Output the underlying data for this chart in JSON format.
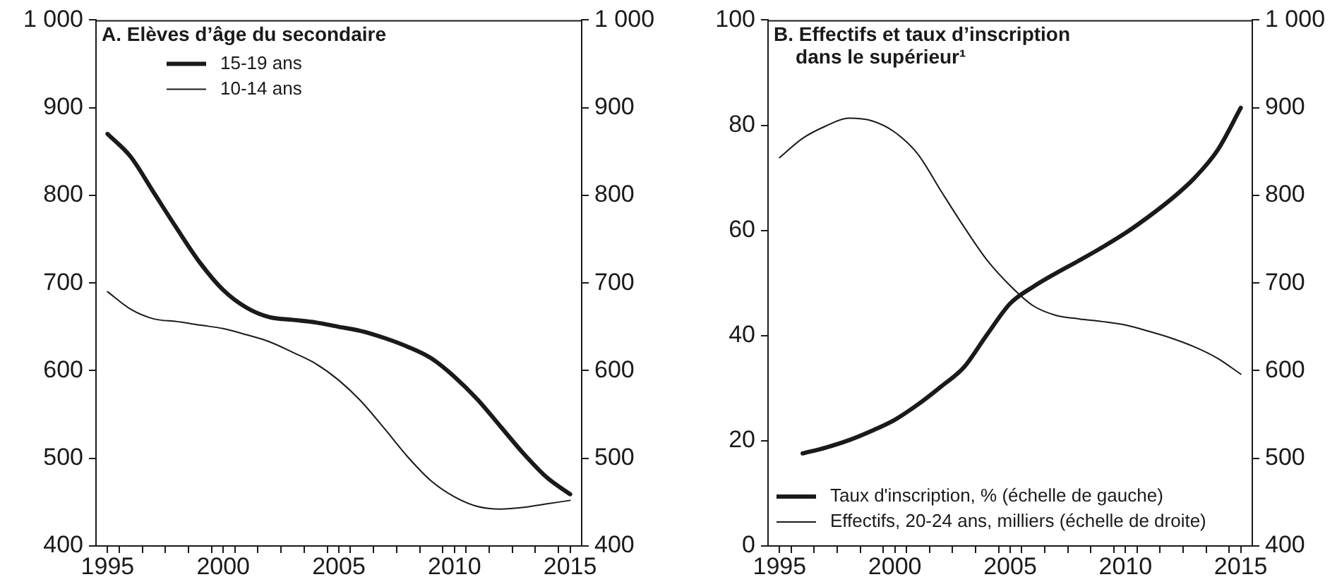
{
  "chart_data": [
    {
      "type": "line",
      "title": "A. Elèves d’âge du secondaire",
      "legend": "top",
      "grid": false,
      "marker": "none",
      "line_style": "solid",
      "x": [
        1995,
        1996,
        1997,
        1998,
        1999,
        2000,
        2001,
        2002,
        2003,
        2004,
        2005,
        2006,
        2007,
        2008,
        2009,
        2010,
        2011,
        2012,
        2013,
        2014,
        2015
      ],
      "xlim": [
        1994.5,
        2015.5
      ],
      "xticks": [
        1995,
        {
          "value": 1995.5,
          "label": null
        },
        {
          "value": 1996.5,
          "label": null
        },
        {
          "value": 1997.5,
          "label": null
        },
        {
          "value": 1998.5,
          "label": null
        },
        {
          "value": 1999.5,
          "label": null
        },
        2000,
        {
          "value": 2000.5,
          "label": null
        },
        {
          "value": 2001.5,
          "label": null
        },
        {
          "value": 2002.5,
          "label": null
        },
        {
          "value": 2003.5,
          "label": null
        },
        {
          "value": 2004.5,
          "label": null
        },
        2005,
        {
          "value": 2005.5,
          "label": null
        },
        {
          "value": 2006.5,
          "label": null
        },
        {
          "value": 2007.5,
          "label": null
        },
        {
          "value": 2008.5,
          "label": null
        },
        {
          "value": 2009.5,
          "label": null
        },
        2010,
        {
          "value": 2010.5,
          "label": null
        },
        {
          "value": 2011.5,
          "label": null
        },
        {
          "value": 2012.5,
          "label": null
        },
        {
          "value": 2013.5,
          "label": null
        },
        {
          "value": 2014.5,
          "label": null
        },
        2015
      ],
      "ylim": [
        400,
        1000
      ],
      "yticks": [
        400,
        500,
        600,
        700,
        800,
        900,
        {
          "value": 1000,
          "label": "1 000"
        }
      ],
      "y2lim": [
        400,
        1000
      ],
      "y2ticks": [
        400,
        500,
        600,
        700,
        800,
        900,
        {
          "value": 1000,
          "label": "1 000"
        }
      ],
      "series": [
        {
          "name": "15-19 ans",
          "color": "#1a1a1a",
          "values": [
            870,
            844,
            803,
            762,
            723,
            692,
            672,
            661,
            658,
            655,
            650,
            645,
            637,
            627,
            614,
            593,
            567,
            536,
            505,
            478,
            459
          ]
        },
        {
          "name": "10-14 ans",
          "color": "#1a1a1a",
          "values": [
            690,
            670,
            659,
            656,
            652,
            648,
            641,
            633,
            621,
            608,
            589,
            564,
            533,
            501,
            474,
            456,
            445,
            442,
            444,
            448,
            452
          ]
        }
      ]
    },
    {
      "type": "line",
      "title": "B. Effectifs et taux d’inscription\n    dans le supérieur¹",
      "legend": "bottom left",
      "grid": false,
      "marker": "none",
      "line_style": "solid",
      "x": [
        1995,
        1996,
        1997,
        1998,
        1999,
        2000,
        2001,
        2002,
        2003,
        2004,
        2005,
        2006,
        2007,
        2008,
        2009,
        2010,
        2011,
        2012,
        2013,
        2014,
        2015
      ],
      "xlim": [
        1994.5,
        2015.5
      ],
      "xticks": [
        1995,
        {
          "value": 1995.5,
          "label": null
        },
        {
          "value": 1996.5,
          "label": null
        },
        {
          "value": 1997.5,
          "label": null
        },
        {
          "value": 1998.5,
          "label": null
        },
        {
          "value": 1999.5,
          "label": null
        },
        2000,
        {
          "value": 2000.5,
          "label": null
        },
        {
          "value": 2001.5,
          "label": null
        },
        {
          "value": 2002.5,
          "label": null
        },
        {
          "value": 2003.5,
          "label": null
        },
        {
          "value": 2004.5,
          "label": null
        },
        2005,
        {
          "value": 2005.5,
          "label": null
        },
        {
          "value": 2006.5,
          "label": null
        },
        {
          "value": 2007.5,
          "label": null
        },
        {
          "value": 2008.5,
          "label": null
        },
        {
          "value": 2009.5,
          "label": null
        },
        2010,
        {
          "value": 2010.5,
          "label": null
        },
        {
          "value": 2011.5,
          "label": null
        },
        {
          "value": 2012.5,
          "label": null
        },
        {
          "value": 2013.5,
          "label": null
        },
        {
          "value": 2014.5,
          "label": null
        },
        2015
      ],
      "ylim": [
        0,
        100
      ],
      "yticks": [
        0,
        20,
        40,
        60,
        80,
        100
      ],
      "y2lim": [
        400,
        1000
      ],
      "y2ticks": [
        400,
        500,
        600,
        700,
        800,
        900,
        {
          "value": 1000,
          "label": "1 000"
        }
      ],
      "series": [
        {
          "name": "Taux d'inscription, % (échelle de gauche)",
          "color": "#1a1a1a",
          "values": [
            null,
            17.6,
            18.7,
            20.1,
            21.9,
            24.0,
            26.9,
            30.3,
            34.0,
            40.2,
            46.1,
            49.3,
            51.9,
            54.3,
            56.8,
            59.5,
            62.6,
            66.0,
            70.0,
            75.3,
            83.3
          ]
        },
        {
          "name": "Effectifs, 20-24 ans, milliers (échelle de droite)",
          "color": "#1a1a1a",
          "axis": "y2",
          "values": [
            843,
            865,
            879,
            888,
            885,
            872,
            847,
            805,
            764,
            726,
            697,
            674,
            663,
            659,
            656,
            652,
            645,
            637,
            627,
            614,
            596
          ]
        }
      ]
    }
  ]
}
